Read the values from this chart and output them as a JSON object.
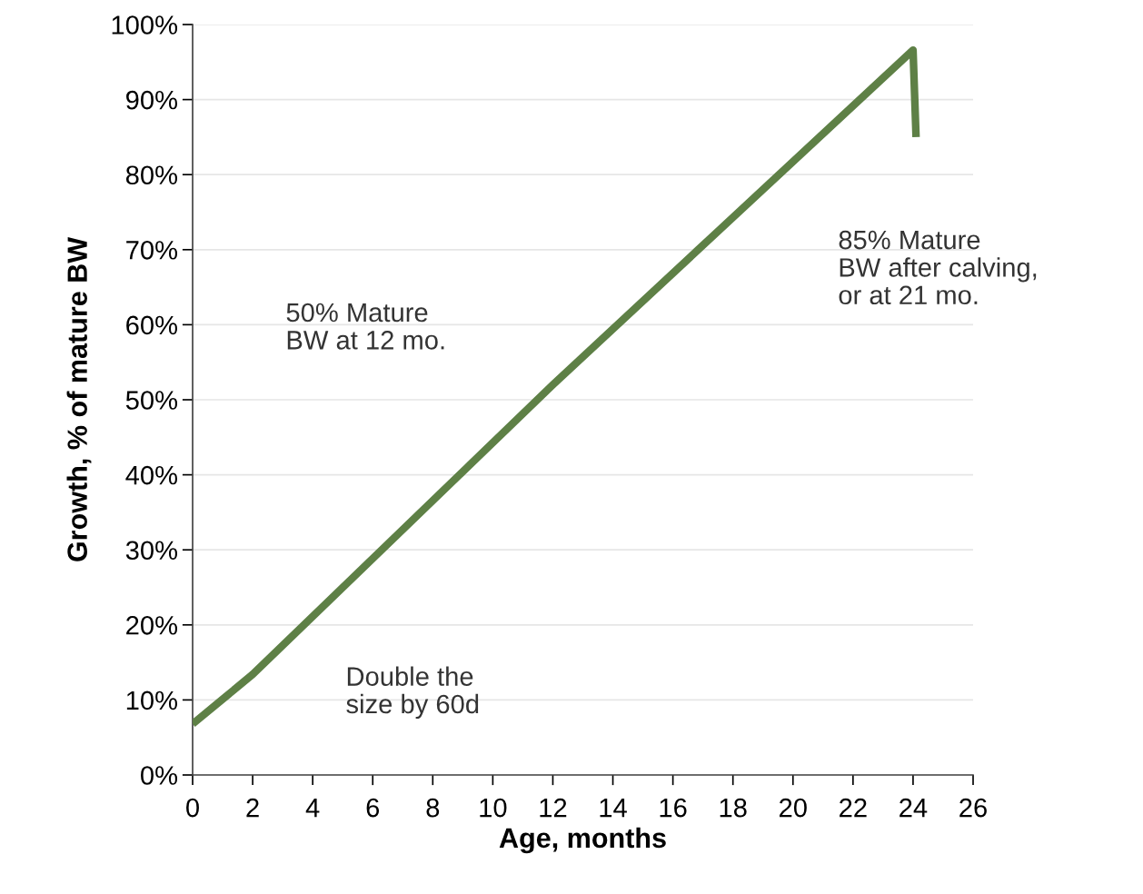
{
  "chart_data": {
    "type": "line",
    "xlabel": "Age, months",
    "ylabel": "Growth, % of mature BW",
    "x": [
      0,
      2,
      12,
      24,
      24.1
    ],
    "series": [
      {
        "color": "#5e8046",
        "values": [
          6.8,
          13.4,
          52,
          96.6,
          85
        ]
      }
    ],
    "xlim": [
      0,
      26
    ],
    "xticks": [
      0,
      2,
      4,
      6,
      8,
      10,
      12,
      14,
      16,
      18,
      20,
      22,
      24,
      26
    ],
    "ylim": [
      0,
      100
    ],
    "yticks": [
      {
        "value": 0,
        "label": "0%"
      },
      {
        "value": 10,
        "label": "10%"
      },
      {
        "value": 20,
        "label": "20%"
      },
      {
        "value": 30,
        "label": "30%"
      },
      {
        "value": 40,
        "label": "40%"
      },
      {
        "value": 50,
        "label": "50%"
      },
      {
        "value": 60,
        "label": "60%"
      },
      {
        "value": 70,
        "label": "70%"
      },
      {
        "value": 80,
        "label": "80%"
      },
      {
        "value": 90,
        "label": "90%"
      },
      {
        "value": 100,
        "label": "100%"
      }
    ],
    "grid": "y",
    "marker": "none",
    "line_style": "solid",
    "annotations": [
      "50% Mature\nBW at 12 mo.",
      "Double the\nsize by 60d",
      "85% Mature\nBW after calving,\nor at 21 mo."
    ]
  }
}
